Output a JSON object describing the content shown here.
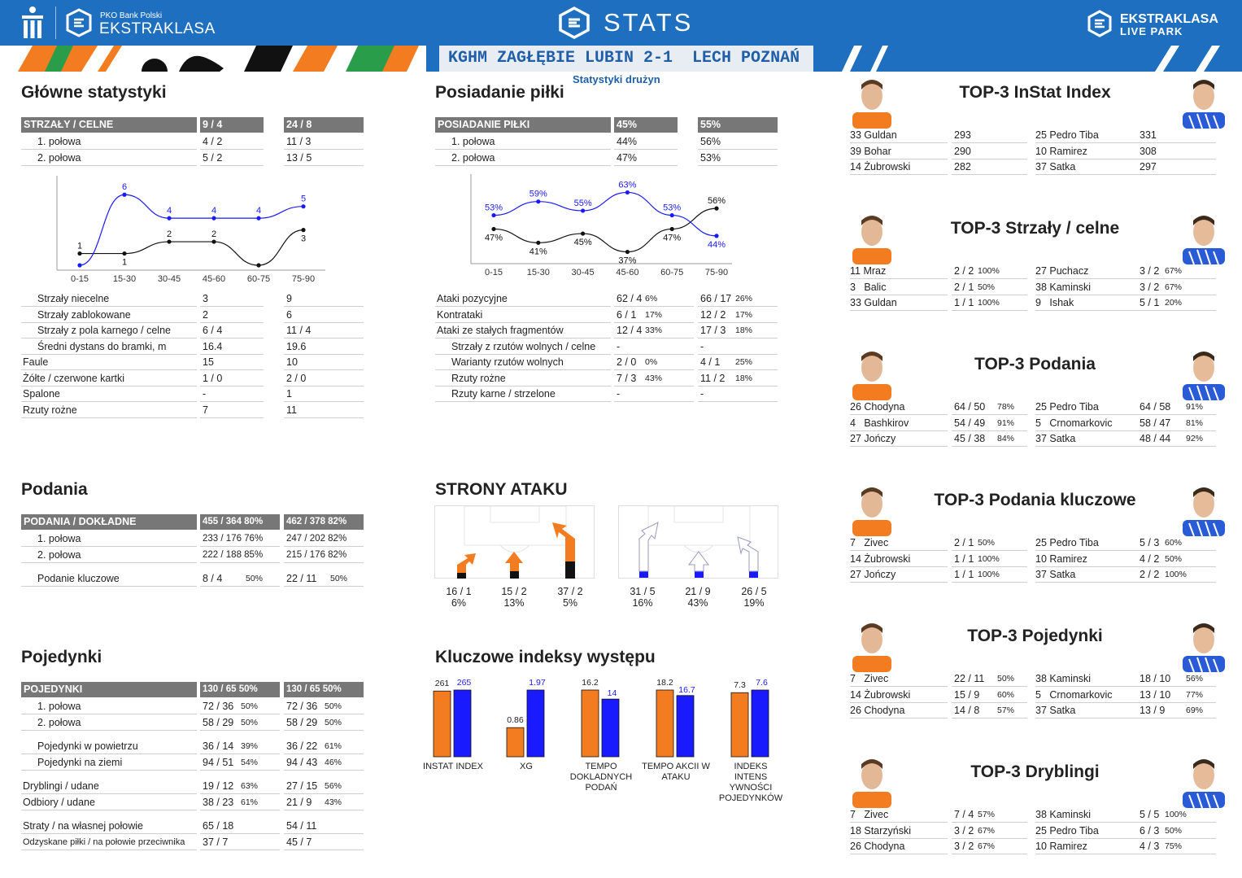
{
  "header": {
    "left_logo": "PKO Bank Polski",
    "left_brand": "EKSTRAKLASA",
    "center_title": "STATS",
    "right_brand_1": "EKSTRAKLASA",
    "right_brand_2": "LIVE PARK",
    "match": "KGHM ZAGŁĘBIE LUBIN 2-1  LECH POZNAŃ",
    "subtitle": "Statystyki drużyn"
  },
  "colors": {
    "orange": "#f47c20",
    "blue": "#1a1aff",
    "header": "#1e6fc0",
    "tablehead": "#777777"
  },
  "glowne": {
    "title": "Główne statystyki",
    "head": [
      "STRZAŁY / CELNE",
      "9 / 4",
      "24 / 8"
    ],
    "rows_top": [
      [
        "1. połowa",
        "4 / 2",
        "11 / 3"
      ],
      [
        "2. połowa",
        "5 / 2",
        "13 / 5"
      ]
    ],
    "rows_bottom": [
      [
        "Strzały niecelne",
        "3",
        "9"
      ],
      [
        "Strzały zablokowane",
        "2",
        "6"
      ],
      [
        "Strzały z pola karnego / celne",
        "6 / 4",
        "11 / 4"
      ],
      [
        "Średni dystans do bramki, m",
        "16.4",
        "19.6"
      ],
      [
        "Faule",
        "15",
        "10"
      ],
      [
        "Żółte / czerwone kartki",
        "1 / 0",
        "2 / 0"
      ],
      [
        "Spalone",
        "-",
        "1"
      ],
      [
        "Rzuty rożne",
        "7",
        "11"
      ]
    ]
  },
  "posiadanie": {
    "title": "Posiadanie piłki",
    "head": [
      "POSIADANIE PIŁKI",
      "45%",
      "55%"
    ],
    "rows_top": [
      [
        "1. połowa",
        "44%",
        "56%"
      ],
      [
        "2. połowa",
        "47%",
        "53%"
      ]
    ],
    "rows_bottom": [
      [
        "Ataki pozycyjne",
        "62 / 4",
        "6%",
        "66 / 17",
        "26%"
      ],
      [
        "Kontrataki",
        "6 / 1",
        "17%",
        "12 / 2",
        "17%"
      ],
      [
        "Ataki ze stałych fragmentów",
        "12 / 4",
        "33%",
        "17 / 3",
        "18%"
      ],
      [
        "Strzały z rzutów wolnych / celne",
        "-",
        "",
        "-",
        ""
      ],
      [
        "Warianty rzutów wolnych",
        "2 / 0",
        "0%",
        "4 / 1",
        "25%"
      ],
      [
        "Rzuty rożne",
        "7 / 3",
        "43%",
        "11 / 2",
        "18%"
      ],
      [
        "Rzuty karne / strzelone",
        "-",
        "",
        "-",
        ""
      ]
    ]
  },
  "chart_data": [
    {
      "type": "line",
      "title": "",
      "categories": [
        "0-15",
        "15-30",
        "30-45",
        "45-60",
        "60-75",
        "75-90"
      ],
      "series": [
        {
          "values": [
            1,
            1,
            2,
            2,
            0,
            3
          ]
        },
        {
          "values": [
            0,
            6,
            4,
            4,
            4,
            5
          ]
        }
      ],
      "data_labels": [
        [
          "1",
          "1",
          "2",
          "2",
          "",
          "3"
        ],
        [
          "",
          "6",
          "4",
          "4",
          "4",
          "5"
        ]
      ],
      "ylim": [
        0,
        6.5
      ]
    },
    {
      "type": "line",
      "title": "",
      "categories": [
        "0-15",
        "15-30",
        "30-45",
        "45-60",
        "60-75",
        "75-90"
      ],
      "series": [
        {
          "values": [
            47,
            41,
            45,
            37,
            47,
            56
          ]
        },
        {
          "values": [
            53,
            59,
            55,
            63,
            53,
            44
          ]
        }
      ],
      "data_labels": [
        [
          "47%",
          "41%",
          "45%",
          "37%",
          "47%",
          "56%"
        ],
        [
          "53%",
          "59%",
          "55%",
          "63%",
          "53%",
          "44%"
        ]
      ],
      "ylim": [
        34,
        66
      ]
    },
    {
      "type": "bar",
      "title": "Kluczowe indeksy występu",
      "categories": [
        "INSTAT INDEX",
        "XG",
        "TEMPO DOKLADNYCH PODAŃ",
        "TEMPO AKCII W ATAKU",
        "INDEKS INTENS YWNOŚCI POJEDYNKÓW"
      ],
      "series": [
        {
          "values": [
            261,
            0.86,
            16.2,
            18.2,
            7.3
          ]
        },
        {
          "values": [
            265,
            1.97,
            14,
            16.7,
            7.6
          ]
        }
      ],
      "value_labels": [
        [
          "261",
          "0.86",
          "16.2",
          "18.2",
          "7.3"
        ],
        [
          "265",
          "1.97",
          "14",
          "16.7",
          "7.6"
        ]
      ]
    }
  ],
  "podania": {
    "title": "Podania",
    "head": [
      "PODANIA / DOKŁADNE",
      "455 / 364 80%",
      "462 / 378 82%"
    ],
    "rows": [
      [
        "1. połowa",
        "233 / 176 76%",
        "247 / 202 82%"
      ],
      [
        "2. połowa",
        "222 / 188 85%",
        "215 / 176 82%"
      ]
    ],
    "key": [
      "Podanie kluczowe",
      "8 / 4",
      "50%",
      "22 / 11",
      "50%"
    ]
  },
  "strony": {
    "title": "STRONY ATAKU",
    "left": [
      [
        "16 / 1",
        "6%"
      ],
      [
        "15 / 2",
        "13%"
      ],
      [
        "37 / 2",
        "5%"
      ]
    ],
    "right": [
      [
        "31 / 5",
        "16%"
      ],
      [
        "21 / 9",
        "43%"
      ],
      [
        "26 / 5",
        "19%"
      ]
    ]
  },
  "pojedynki": {
    "title": "Pojedynki",
    "head": [
      "POJEDYNKI",
      "130 / 65 50%",
      "130 / 65 50%"
    ],
    "rows": [
      [
        "1. połowa",
        "72 / 36",
        "50%",
        "72 / 36",
        "50%"
      ],
      [
        "2. połowa",
        "58 / 29",
        "50%",
        "58 / 29",
        "50%"
      ],
      [
        "Pojedynki w powietrzu",
        "36 / 14",
        "39%",
        "36 / 22",
        "61%"
      ],
      [
        "Pojedynki na ziemi",
        "94 / 51",
        "54%",
        "94 / 43",
        "46%"
      ],
      [
        "Dryblingi / udane",
        "19 / 12",
        "63%",
        "27 / 15",
        "56%"
      ],
      [
        "Odbiory / udane",
        "38 / 23",
        "61%",
        "21 / 9",
        "43%"
      ],
      [
        "Straty / na własnej połowie",
        "65 / 18",
        "",
        "54 / 11",
        ""
      ],
      [
        "Odzyskane piłki / na połowie przeciwnika",
        "37 / 7",
        "",
        "45 / 7",
        ""
      ]
    ]
  },
  "tops": [
    {
      "title": "TOP-3 InStat Index",
      "rows": [
        [
          "33 Guldan",
          "293",
          "",
          "25 Pedro Tiba",
          "331",
          ""
        ],
        [
          "39 Bohar",
          "290",
          "",
          "10 Ramirez",
          "308",
          ""
        ],
        [
          "14 Żubrowski",
          "282",
          "",
          "37 Satka",
          "297",
          ""
        ]
      ]
    },
    {
      "title": "TOP-3 Strzały / celne",
      "rows": [
        [
          "11 Mraz",
          "2 / 2",
          "100%",
          "27 Puchacz",
          "3 / 2",
          "67%"
        ],
        [
          "3   Balic",
          "2 / 1",
          "50%",
          "38 Kaminski",
          "3 / 2",
          "67%"
        ],
        [
          "33 Guldan",
          "1 / 1",
          "100%",
          "9   Ishak",
          "5 / 1",
          "20%"
        ]
      ]
    },
    {
      "title": "TOP-3 Podania",
      "rows": [
        [
          "26 Chodyna",
          "64 / 50",
          "78%",
          "25 Pedro Tiba",
          "64 / 58",
          "91%"
        ],
        [
          "4   Bashkirov",
          "54 / 49",
          "91%",
          "5   Crnomarkovic",
          "58 / 47",
          "81%"
        ],
        [
          "27 Jończy",
          "45 / 38",
          "84%",
          "37 Satka",
          "48 / 44",
          "92%"
        ]
      ]
    },
    {
      "title": "TOP-3 Podania kluczowe",
      "rows": [
        [
          "7   Zivec",
          "2 / 1",
          "50%",
          "25 Pedro Tiba",
          "5 / 3",
          "60%"
        ],
        [
          "14 Żubrowski",
          "1 / 1",
          "100%",
          "10 Ramirez",
          "4 / 2",
          "50%"
        ],
        [
          "27 Jończy",
          "1 / 1",
          "100%",
          "37 Satka",
          "2 / 2",
          "100%"
        ]
      ]
    },
    {
      "title": "TOP-3 Pojedynki",
      "rows": [
        [
          "7   Zivec",
          "22 / 11",
          "50%",
          "38 Kaminski",
          "18 / 10",
          "56%"
        ],
        [
          "14 Żubrowski",
          "15 / 9",
          "60%",
          "5   Crnomarkovic",
          "13 / 10",
          "77%"
        ],
        [
          "26 Chodyna",
          "14 / 8",
          "57%",
          "37 Satka",
          "13 / 9",
          "69%"
        ]
      ]
    },
    {
      "title": "TOP-3 Dryblingi",
      "rows": [
        [
          "7   Zivec",
          "7 / 4",
          "57%",
          "38 Kaminski",
          "5 / 5",
          "100%"
        ],
        [
          "18 Starzyński",
          "3 / 2",
          "67%",
          "25 Pedro Tiba",
          "6 / 3",
          "50%"
        ],
        [
          "26 Chodyna",
          "3 / 2",
          "67%",
          "10 Ramirez",
          "4 / 3",
          "75%"
        ]
      ]
    }
  ]
}
